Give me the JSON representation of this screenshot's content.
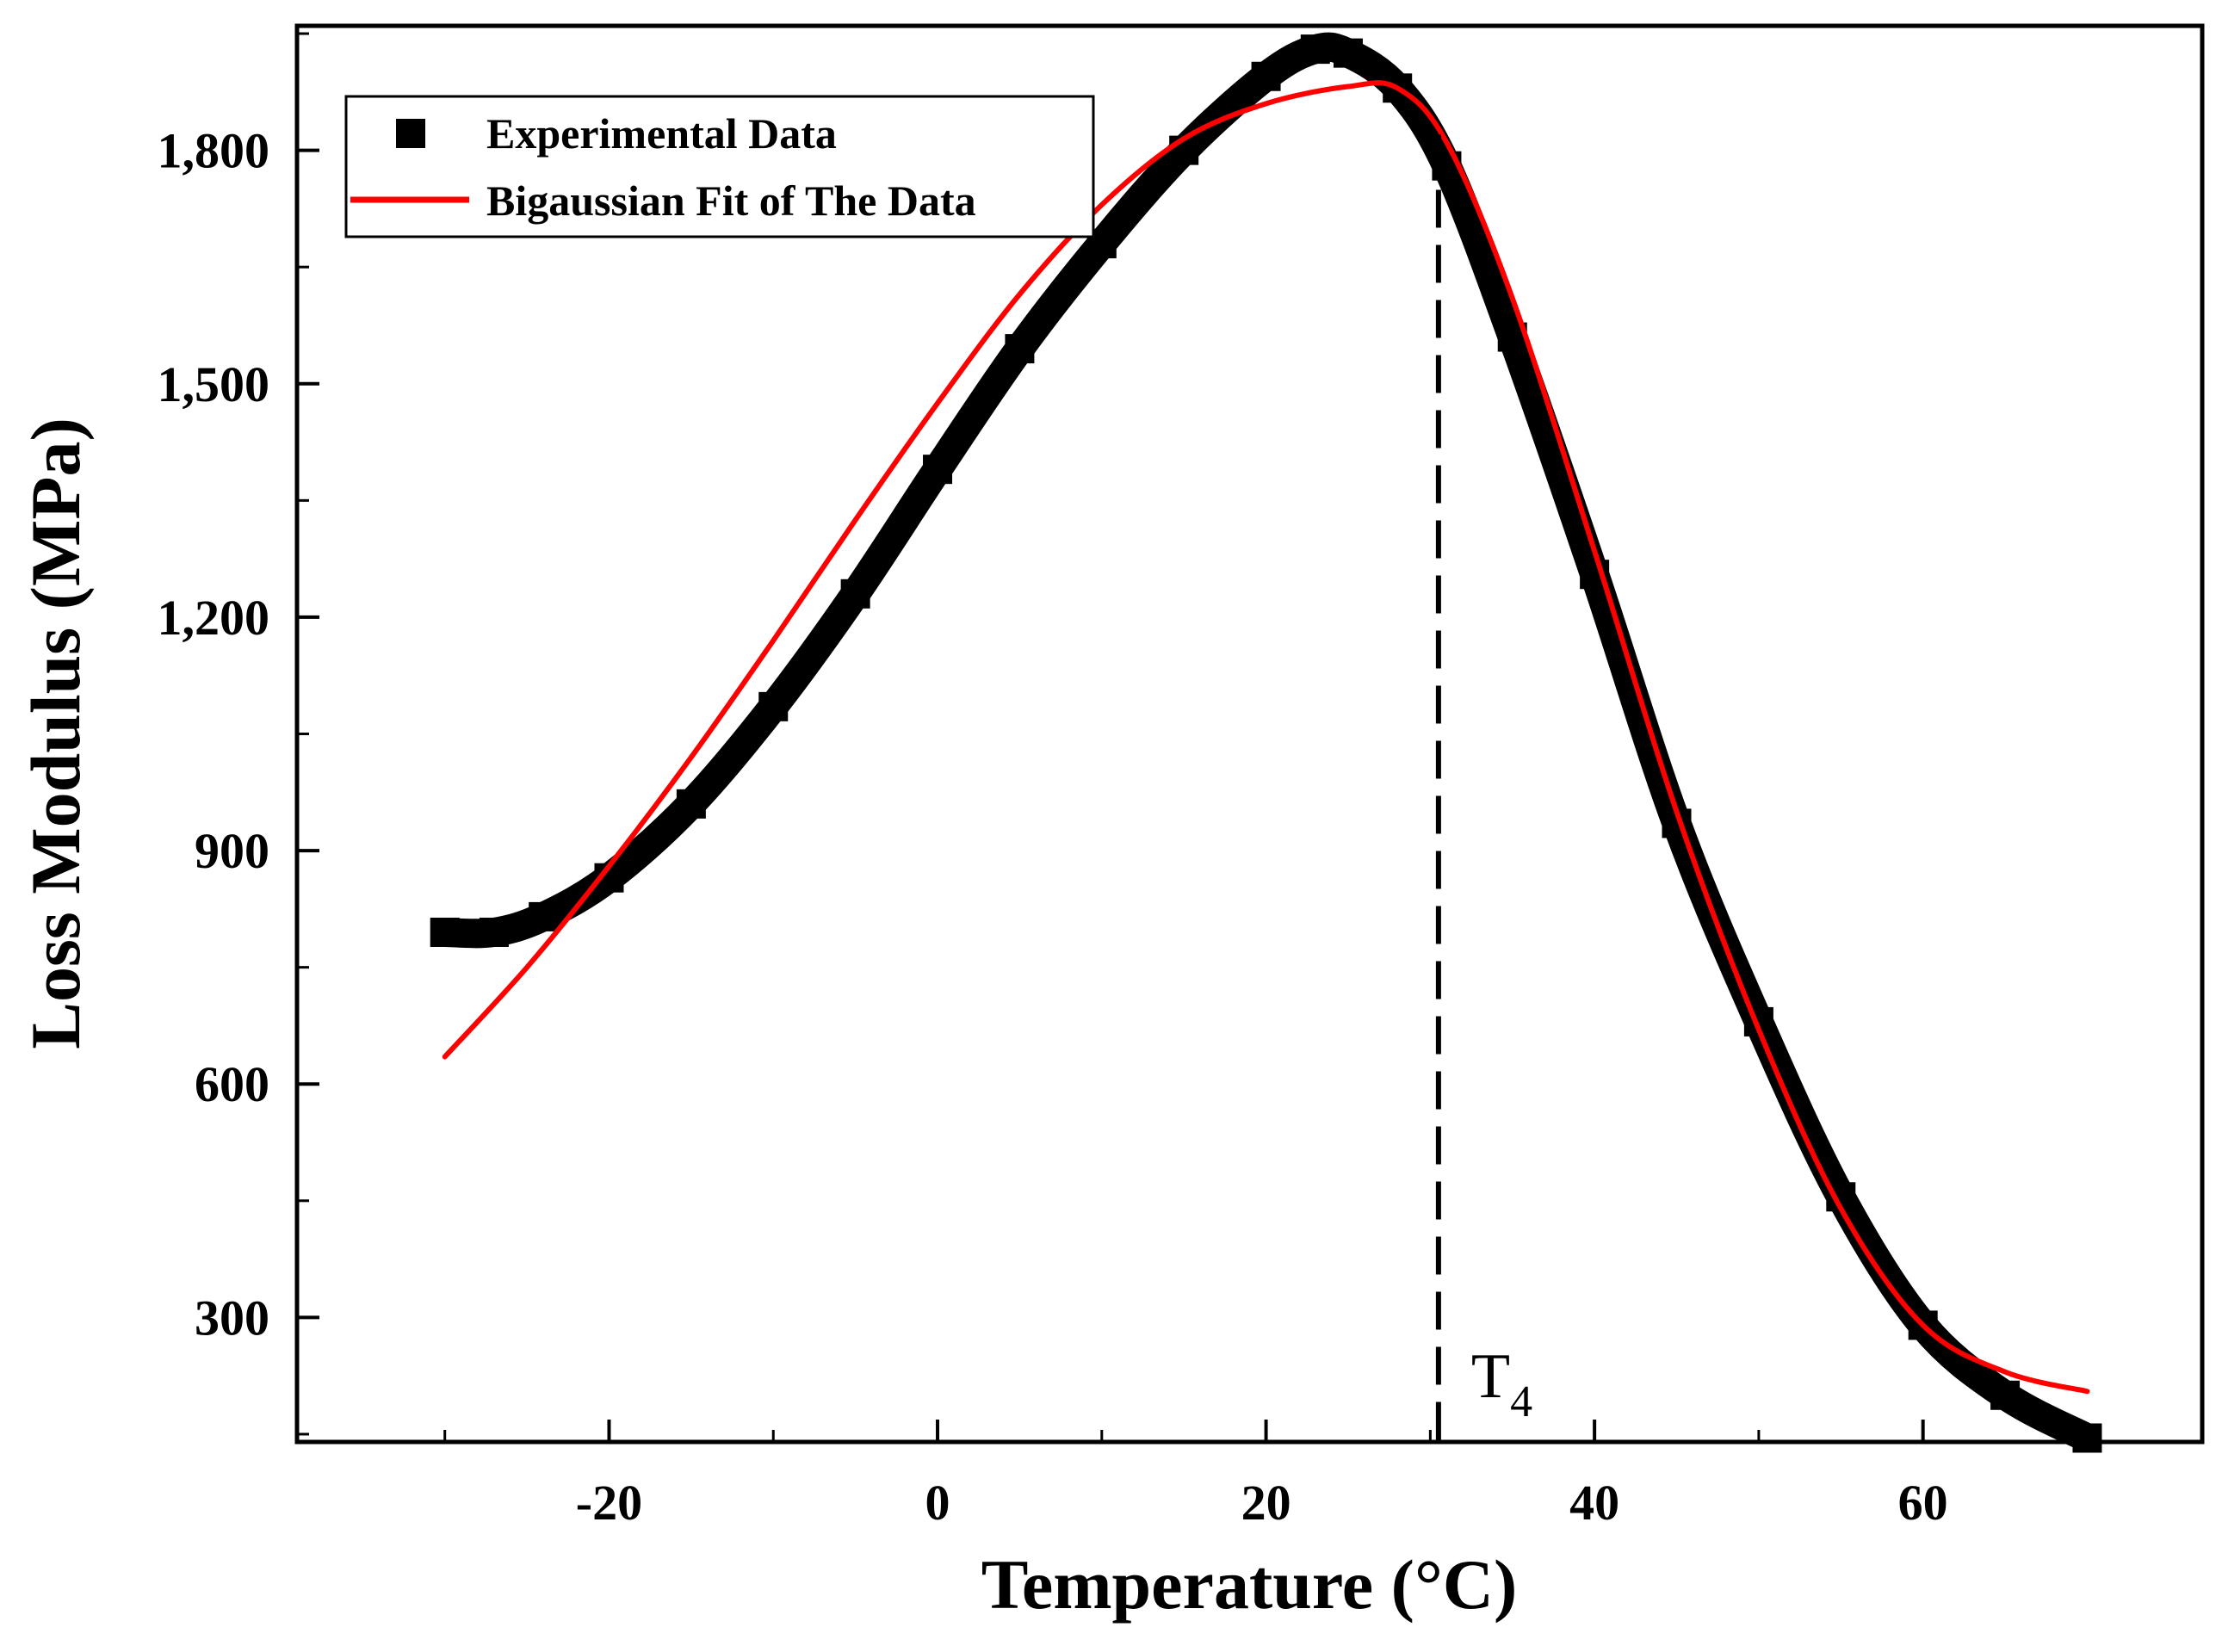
{
  "chart_data": {
    "type": "line",
    "title": "",
    "xlabel": "Temperature (°C)",
    "ylabel": "Loss Modulus (MPa)",
    "xlim": [
      -39,
      77
    ],
    "ylim": [
      140,
      1960
    ],
    "xticks": [
      -20,
      0,
      20,
      40,
      60
    ],
    "xtick_labels": [
      "-20",
      "0",
      "20",
      "40",
      "60"
    ],
    "yticks": [
      300,
      600,
      900,
      1200,
      1500,
      1800
    ],
    "ytick_labels": [
      "300",
      "600",
      "900",
      "1,200",
      "1,500",
      "1,800"
    ],
    "legend_position": "top-left",
    "grid": false,
    "series": [
      {
        "name": "Experimental Data",
        "style": "thick-square-markers",
        "color": "#000000",
        "x": [
          -30,
          -27,
          -24,
          -20,
          -15,
          -10,
          -5,
          0,
          5,
          10,
          15,
          20,
          23,
          25,
          28,
          31,
          35,
          40,
          45,
          50,
          55,
          60,
          65,
          70
        ],
        "y": [
          795,
          795,
          815,
          865,
          960,
          1085,
          1230,
          1390,
          1545,
          1680,
          1800,
          1895,
          1930,
          1925,
          1880,
          1780,
          1560,
          1255,
          935,
          680,
          455,
          290,
          200,
          145
        ]
      },
      {
        "name": "Bigaussian Fit of The Data",
        "style": "line",
        "color": "#ff0000",
        "x": [
          -30,
          -25,
          -20,
          -15,
          -10,
          -5,
          0,
          5,
          10,
          15,
          20,
          25,
          28,
          31,
          35,
          40,
          45,
          50,
          55,
          60,
          65,
          70
        ],
        "y": [
          635,
          750,
          880,
          1020,
          1170,
          1325,
          1475,
          1615,
          1730,
          1815,
          1860,
          1882,
          1880,
          1810,
          1610,
          1285,
          950,
          670,
          440,
          290,
          230,
          205
        ]
      }
    ],
    "annotations": [
      {
        "type": "vertical-dashed-line",
        "x": 30.5,
        "label": "T",
        "subscript": "4"
      }
    ]
  }
}
